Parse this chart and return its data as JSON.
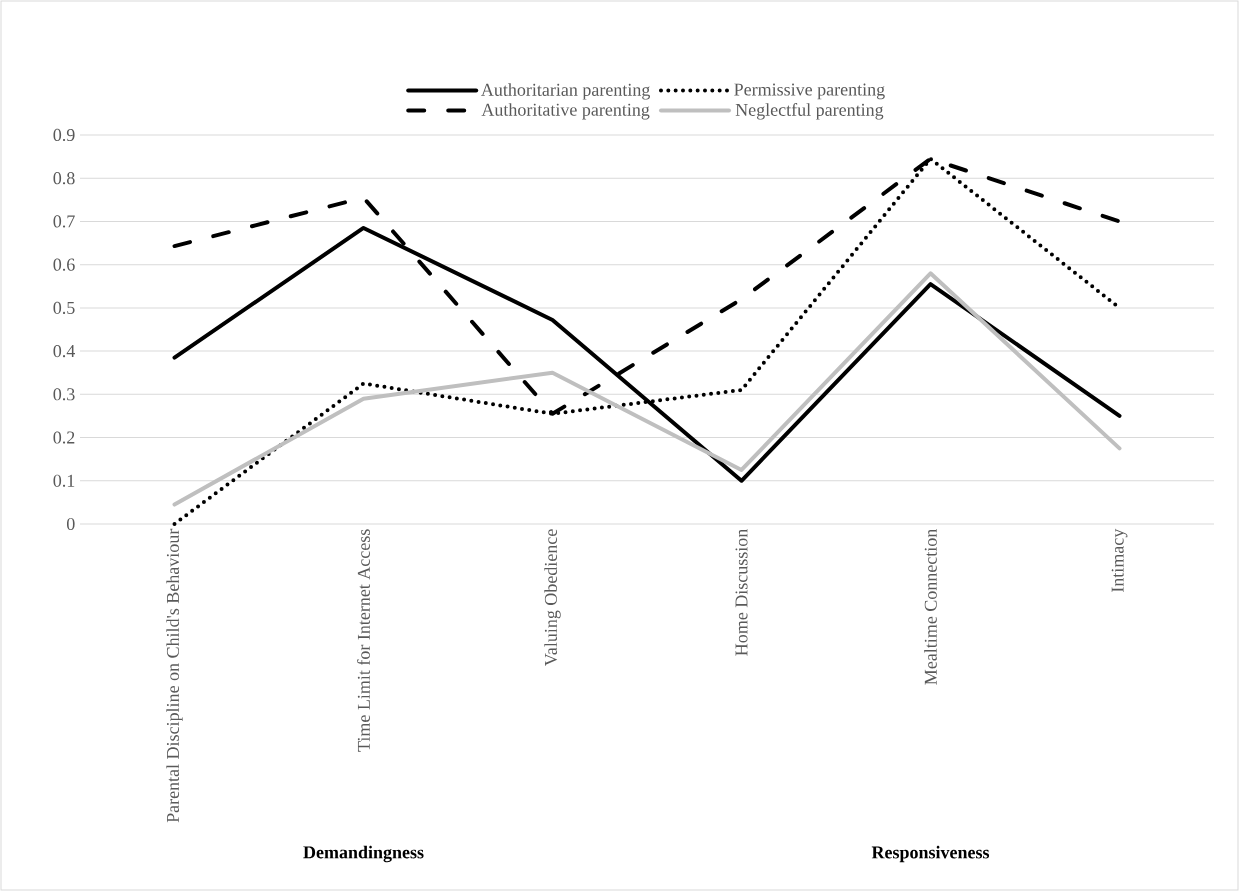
{
  "chart_data": {
    "type": "line",
    "categories": [
      "Parental Discipline on Child's Behaviour",
      "Time Limit for Internet Access",
      "Valuing Obedience",
      "Home Discussion",
      "Mealtime Connection",
      "Intimacy"
    ],
    "series": [
      {
        "name": "Authoritarian parenting",
        "color": "#000000",
        "line_style": "solid",
        "values": [
          0.385,
          0.685,
          0.472,
          0.1,
          0.555,
          0.25
        ]
      },
      {
        "name": "Permissive parenting",
        "color": "#000000",
        "line_style": "dotted",
        "values": [
          0.0,
          0.325,
          0.255,
          0.31,
          0.845,
          0.5
        ]
      },
      {
        "name": "Authoritative parenting",
        "color": "#000000",
        "line_style": "dashed",
        "values": [
          0.643,
          0.755,
          0.255,
          0.52,
          0.845,
          0.7
        ]
      },
      {
        "name": "Neglectful parenting",
        "color": "#bfbfbf",
        "line_style": "solid",
        "values": [
          0.045,
          0.29,
          0.35,
          0.125,
          0.58,
          0.175
        ]
      }
    ],
    "ylim": [
      0,
      0.9
    ],
    "yticks": [
      0,
      0.1,
      0.2,
      0.3,
      0.4,
      0.5,
      0.6,
      0.7,
      0.8,
      0.9
    ],
    "grid": "y",
    "legend": "top",
    "marker": "none",
    "annotations": [
      "Demandingness",
      "Responsiveness"
    ]
  }
}
